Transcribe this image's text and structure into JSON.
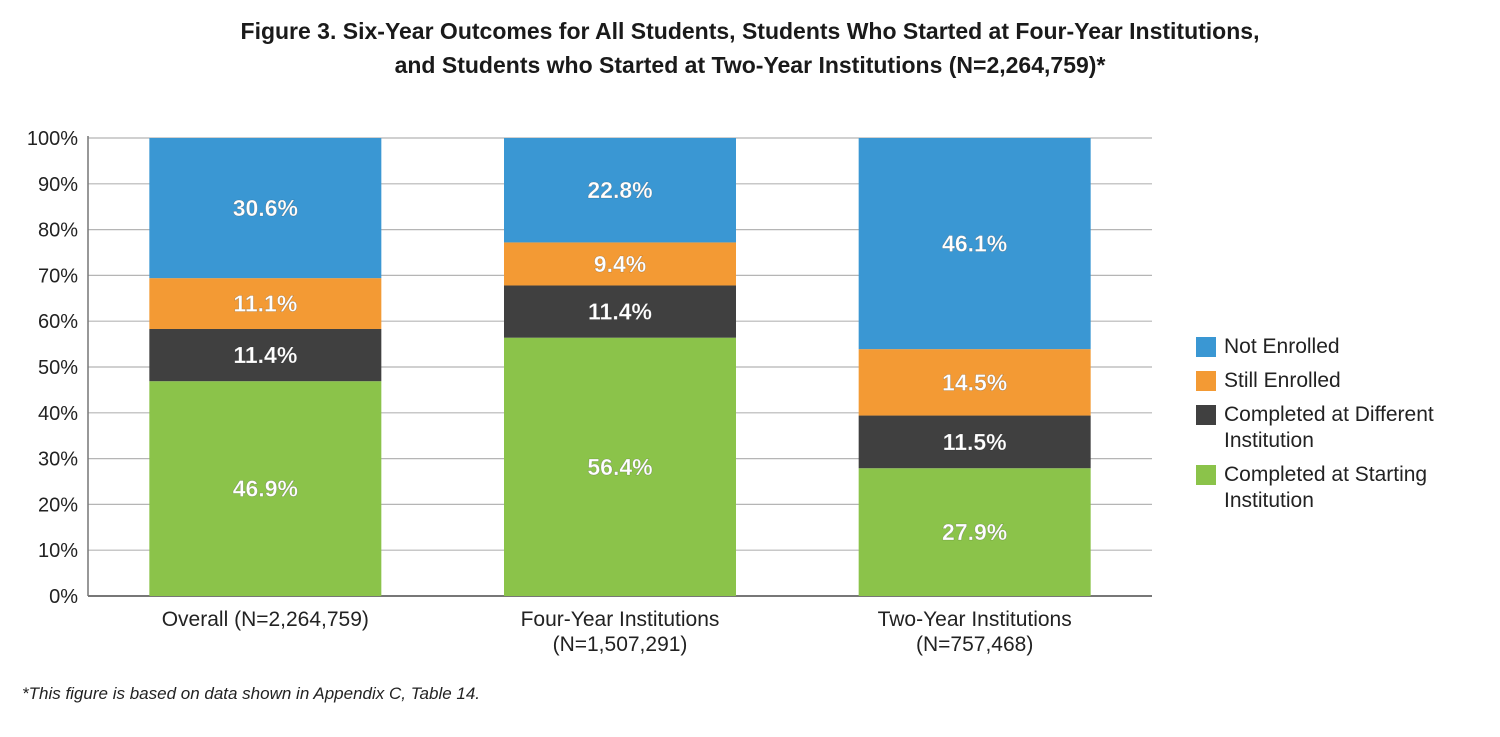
{
  "title_line1": "Figure 3. Six-Year Outcomes for All Students, Students Who Started at Four-Year Institutions,",
  "title_line2": "and Students who Started at Two-Year Institutions (N=2,264,759)*",
  "footnote": "*This figure is based on data shown in Appendix C, Table 14.",
  "chart_data": {
    "type": "bar",
    "stacked": true,
    "categories": [
      [
        "Overall (N=2,264,759)"
      ],
      [
        "Four-Year Institutions",
        "(N=1,507,291)"
      ],
      [
        "Two-Year Institutions",
        "(N=757,468)"
      ]
    ],
    "series": [
      {
        "name": "Completed at Starting Institution",
        "color": "#8bc34a",
        "values": [
          46.9,
          56.4,
          27.9
        ],
        "labels": [
          "46.9%",
          "56.4%",
          "27.9%"
        ]
      },
      {
        "name": "Completed at Different Institution",
        "color": "#404040",
        "values": [
          11.4,
          11.4,
          11.5
        ],
        "labels": [
          "11.4%",
          "11.4%",
          "11.5%"
        ]
      },
      {
        "name": "Still Enrolled",
        "color": "#f39a34",
        "values": [
          11.1,
          9.4,
          14.5
        ],
        "labels": [
          "11.1%",
          "9.4%",
          "14.5%"
        ]
      },
      {
        "name": "Not Enrolled",
        "color": "#3a97d3",
        "values": [
          30.6,
          22.8,
          46.1
        ],
        "labels": [
          "30.6%",
          "22.8%",
          "46.1%"
        ]
      }
    ],
    "ylim": [
      0,
      100
    ],
    "y_ticks": [
      "0%",
      "10%",
      "20%",
      "30%",
      "40%",
      "50%",
      "60%",
      "70%",
      "80%",
      "90%",
      "100%"
    ],
    "grid": true,
    "legend_position": "right",
    "legend_order": [
      "Not Enrolled",
      "Still Enrolled",
      "Completed at Different Institution",
      "Completed at Starting Institution"
    ]
  },
  "legend": [
    {
      "label": "Not Enrolled",
      "color": "#3a97d3"
    },
    {
      "label": "Still Enrolled",
      "color": "#f39a34"
    },
    {
      "label": "Completed at Different Institution",
      "color": "#404040"
    },
    {
      "label": "Completed at Starting Institution",
      "color": "#8bc34a"
    }
  ]
}
